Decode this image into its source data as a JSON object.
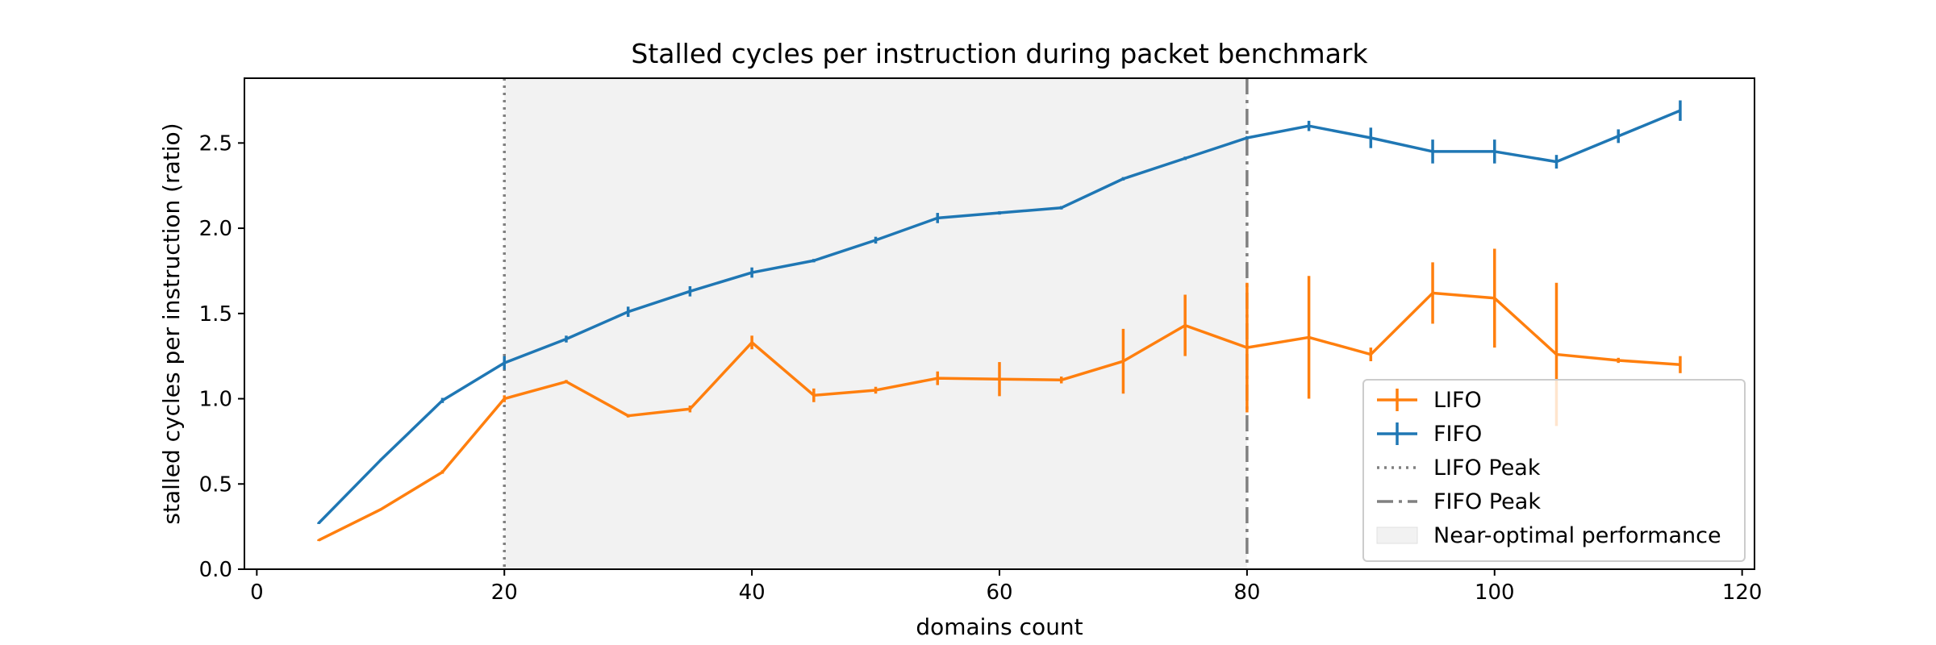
{
  "chart_data": {
    "type": "line",
    "title": "Stalled cycles per instruction during packet benchmark",
    "xlabel": "domains count",
    "ylabel": "stalled cycles per instruction (ratio)",
    "xlim": [
      -1,
      121
    ],
    "ylim": [
      0,
      2.88
    ],
    "xticks": [
      0,
      20,
      40,
      60,
      80,
      100,
      120
    ],
    "yticks": [
      0.0,
      0.5,
      1.0,
      1.5,
      2.0,
      2.5
    ],
    "xtick_labels": [
      "0",
      "20",
      "40",
      "60",
      "80",
      "100",
      "120"
    ],
    "ytick_labels": [
      "0.0",
      "0.5",
      "1.0",
      "1.5",
      "2.0",
      "2.5"
    ],
    "grid": false,
    "legend_position": "lower-right",
    "x": [
      5,
      10,
      15,
      20,
      25,
      30,
      35,
      40,
      45,
      50,
      55,
      60,
      65,
      70,
      75,
      80,
      85,
      90,
      95,
      100,
      105,
      110,
      115
    ],
    "series": [
      {
        "name": "LIFO",
        "color": "#ff7f0e",
        "values": [
          0.17,
          0.35,
          0.57,
          1.0,
          1.1,
          0.9,
          0.94,
          1.33,
          1.02,
          1.05,
          1.12,
          1.115,
          1.11,
          1.22,
          1.43,
          1.3,
          1.36,
          1.26,
          1.62,
          1.59,
          1.26,
          1.225,
          1.2
        ],
        "errors": [
          0.005,
          0.005,
          0.01,
          0.02,
          0.01,
          0.01,
          0.02,
          0.04,
          0.04,
          0.02,
          0.04,
          0.1,
          0.02,
          0.19,
          0.18,
          0.38,
          0.36,
          0.04,
          0.18,
          0.29,
          0.42,
          0.015,
          0.05
        ]
      },
      {
        "name": "FIFO",
        "color": "#1f77b4",
        "values": [
          0.27,
          0.64,
          0.99,
          1.21,
          1.35,
          1.51,
          1.63,
          1.74,
          1.81,
          1.93,
          2.06,
          2.09,
          2.12,
          2.29,
          2.41,
          2.53,
          2.6,
          2.53,
          2.45,
          2.45,
          2.39,
          2.54,
          2.69
        ],
        "errors": [
          0.005,
          0.005,
          0.015,
          0.04,
          0.02,
          0.03,
          0.03,
          0.03,
          0.01,
          0.02,
          0.03,
          0.01,
          0.01,
          0.01,
          0.01,
          0.01,
          0.03,
          0.06,
          0.07,
          0.07,
          0.04,
          0.04,
          0.06
        ]
      }
    ],
    "reference_lines": [
      {
        "name": "LIFO Peak",
        "x": 20,
        "color": "#808080",
        "style": "dotted"
      },
      {
        "name": "FIFO Peak",
        "x": 80,
        "color": "#808080",
        "style": "dashdot"
      }
    ],
    "shaded_region": {
      "name": "Near-optimal performance",
      "x_start": 20,
      "x_end": 80,
      "color": "#f2f2f2"
    }
  }
}
